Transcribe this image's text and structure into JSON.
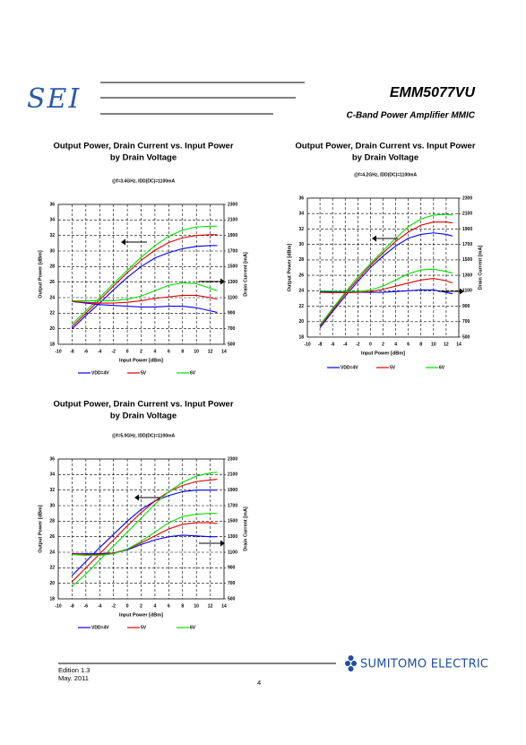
{
  "header": {
    "logo": "SEI",
    "title": "EMM5077VU",
    "subtitle": "C-Band Power Amplifier MMIC"
  },
  "chart_data": [
    {
      "type": "line",
      "title": "Output Power, Drain Current vs. Input Power",
      "subtitle": "by Drain Voltage",
      "condition": "@f=3.4GHz,  IDD(DC)=1100mA",
      "x_label": "Input Power  [dBm]",
      "y_label": "Output Power  [dBm]",
      "y2_label": "Drain Current  [mA]",
      "x": [
        -8,
        -6,
        -4,
        -2,
        0,
        2,
        4,
        6,
        8,
        10,
        12,
        13
      ],
      "xlim": [
        -10,
        14
      ],
      "xticks": [
        -10,
        -8,
        -6,
        -4,
        -2,
        0,
        2,
        4,
        6,
        8,
        10,
        12,
        14
      ],
      "ylim": [
        18,
        36
      ],
      "yticks": [
        18,
        20,
        22,
        24,
        26,
        28,
        30,
        32,
        34,
        36
      ],
      "y2lim": [
        500,
        2300
      ],
      "y2ticks": [
        500,
        700,
        900,
        1100,
        1300,
        1500,
        1700,
        1900,
        2100,
        2300
      ],
      "grid": true,
      "series": [
        {
          "name": "VDD=4V",
          "color": "#0000ff",
          "values": [
            20,
            21.7,
            23.3,
            25,
            26.6,
            28,
            29.1,
            29.8,
            30.3,
            30.6,
            30.7,
            30.7
          ]
        },
        {
          "name": "5V",
          "color": "#e00000",
          "values": [
            20.3,
            22,
            23.7,
            25.5,
            27.2,
            28.8,
            30.1,
            31.1,
            31.7,
            32,
            32.1,
            32.1
          ]
        },
        {
          "name": "6V",
          "color": "#00e000",
          "values": [
            20.6,
            22.3,
            24,
            25.8,
            27.5,
            29.2,
            30.7,
            31.9,
            32.7,
            33.1,
            33.2,
            33.2
          ]
        },
        {
          "color": "#0000ff",
          "axis": "y2",
          "values": [
            1050,
            1030,
            1010,
            1000,
            990,
            980,
            980,
            990,
            990,
            970,
            930,
            910
          ]
        },
        {
          "color": "#e00000",
          "axis": "y2",
          "values": [
            1050,
            1040,
            1030,
            1030,
            1040,
            1060,
            1090,
            1110,
            1130,
            1130,
            1100,
            1080
          ]
        },
        {
          "color": "#00e000",
          "axis": "y2",
          "values": [
            1060,
            1060,
            1060,
            1060,
            1080,
            1120,
            1190,
            1260,
            1290,
            1280,
            1220,
            1190
          ]
        }
      ]
    },
    {
      "type": "line",
      "title": "Output Power, Drain Current vs. Input Power",
      "subtitle": "by Drain Voltage",
      "condition": "@f=4.2GHz,  IDD(DC)=1100mA",
      "x_label": "Input Power  [dBm]",
      "y_label": "Output Power  [dBm]",
      "y2_label": "Drain Current  [mA]",
      "x": [
        -8,
        -6,
        -4,
        -2,
        0,
        2,
        4,
        6,
        8,
        10,
        12,
        13
      ],
      "xlim": [
        -10,
        14
      ],
      "xticks": [
        -10,
        -8,
        -6,
        -4,
        -2,
        0,
        2,
        4,
        6,
        8,
        10,
        12,
        14
      ],
      "ylim": [
        18,
        36
      ],
      "yticks": [
        18,
        20,
        22,
        24,
        26,
        28,
        30,
        32,
        34,
        36
      ],
      "y2lim": [
        500,
        2300
      ],
      "y2ticks": [
        500,
        700,
        900,
        1100,
        1300,
        1500,
        1700,
        1900,
        2100,
        2300
      ],
      "grid": true,
      "series": [
        {
          "name": "VDD=4V",
          "color": "#0000ff",
          "values": [
            19.2,
            21.3,
            23.3,
            25.2,
            27,
            28.5,
            29.8,
            30.8,
            31.3,
            31.5,
            31.3,
            31.1
          ]
        },
        {
          "name": "5V",
          "color": "#e00000",
          "values": [
            19.4,
            21.5,
            23.6,
            25.5,
            27.3,
            28.9,
            30.4,
            31.6,
            32.5,
            32.9,
            32.9,
            32.8
          ]
        },
        {
          "name": "6V",
          "color": "#00e000",
          "values": [
            19.6,
            21.7,
            23.8,
            25.8,
            27.5,
            29.2,
            30.8,
            32.3,
            33.3,
            33.8,
            33.9,
            33.8
          ]
        },
        {
          "color": "#0000ff",
          "axis": "y2",
          "values": [
            1090,
            1085,
            1080,
            1080,
            1080,
            1080,
            1090,
            1100,
            1110,
            1110,
            1080,
            1060
          ]
        },
        {
          "color": "#e00000",
          "axis": "y2",
          "values": [
            1080,
            1075,
            1075,
            1080,
            1090,
            1120,
            1160,
            1200,
            1240,
            1260,
            1230,
            1200
          ]
        },
        {
          "color": "#00e000",
          "axis": "y2",
          "values": [
            1100,
            1095,
            1090,
            1090,
            1110,
            1160,
            1240,
            1320,
            1370,
            1380,
            1350,
            1330
          ]
        }
      ]
    },
    {
      "type": "line",
      "title": "Output Power, Drain Current vs. Input Power",
      "subtitle": "by Drain Voltage",
      "condition": "@f=5.0GHz,  IDD(DC)=1100mA",
      "x_label": "Input Power  [dBm]",
      "y_label": "Output Power  [dBm]",
      "y2_label": "Drain Current  [mA]",
      "x": [
        -8,
        -6,
        -4,
        -2,
        0,
        2,
        4,
        6,
        8,
        10,
        12,
        13
      ],
      "xlim": [
        -10,
        14
      ],
      "xticks": [
        -10,
        -8,
        -6,
        -4,
        -2,
        0,
        2,
        4,
        6,
        8,
        10,
        12,
        14
      ],
      "ylim": [
        18,
        36
      ],
      "yticks": [
        18,
        20,
        22,
        24,
        26,
        28,
        30,
        32,
        34,
        36
      ],
      "y2lim": [
        500,
        2300
      ],
      "y2ticks": [
        500,
        700,
        900,
        1100,
        1300,
        1500,
        1700,
        1900,
        2100,
        2300
      ],
      "grid": true,
      "series": [
        {
          "name": "VDD=4V",
          "color": "#0000ff",
          "values": [
            21,
            22.8,
            24.6,
            26.3,
            28,
            29.5,
            30.6,
            31.3,
            31.8,
            32,
            32,
            32
          ]
        },
        {
          "name": "5V",
          "color": "#e00000",
          "values": [
            20.2,
            22,
            23.8,
            25.6,
            27.4,
            29.1,
            30.6,
            31.8,
            32.6,
            33.1,
            33.3,
            33.4
          ]
        },
        {
          "name": "6V",
          "color": "#00e000",
          "values": [
            19.6,
            21.2,
            23,
            24.8,
            26.6,
            28.4,
            30.2,
            31.8,
            33,
            33.8,
            34.2,
            34.3
          ]
        },
        {
          "color": "#0000ff",
          "axis": "y2",
          "values": [
            1080,
            1080,
            1080,
            1090,
            1130,
            1200,
            1260,
            1300,
            1320,
            1310,
            1300,
            1300
          ]
        },
        {
          "color": "#e00000",
          "axis": "y2",
          "values": [
            1080,
            1070,
            1070,
            1090,
            1140,
            1220,
            1310,
            1400,
            1460,
            1480,
            1480,
            1470
          ]
        },
        {
          "color": "#00e000",
          "axis": "y2",
          "values": [
            1070,
            1060,
            1060,
            1080,
            1140,
            1240,
            1360,
            1480,
            1560,
            1590,
            1600,
            1600
          ]
        }
      ]
    }
  ],
  "footer": {
    "edition": "Edition 1.3",
    "date": "May. 2011",
    "page": 4,
    "company": "SUMITOMO ELECTRIC"
  }
}
